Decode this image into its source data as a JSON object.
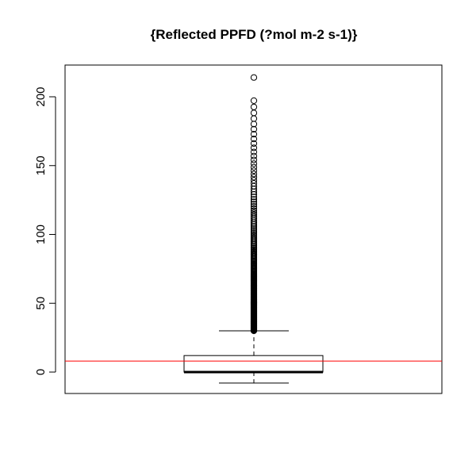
{
  "chart_data": {
    "type": "boxplot",
    "title": "{Reflected PPFD (?mol m-2 s-1)}",
    "xlabel": "",
    "ylabel": "",
    "ylim": [
      -8,
      224
    ],
    "yticks": [
      0,
      50,
      100,
      150,
      200
    ],
    "box": {
      "whisker_low": -8,
      "q1": 0,
      "median": 0,
      "q3": 12,
      "whisker_high": 30
    },
    "outlier_range": [
      30,
      198
    ],
    "outlier_max": 214,
    "reference_line": {
      "y": 8,
      "color": "#ff0000"
    },
    "grid": false,
    "legend": "none"
  }
}
